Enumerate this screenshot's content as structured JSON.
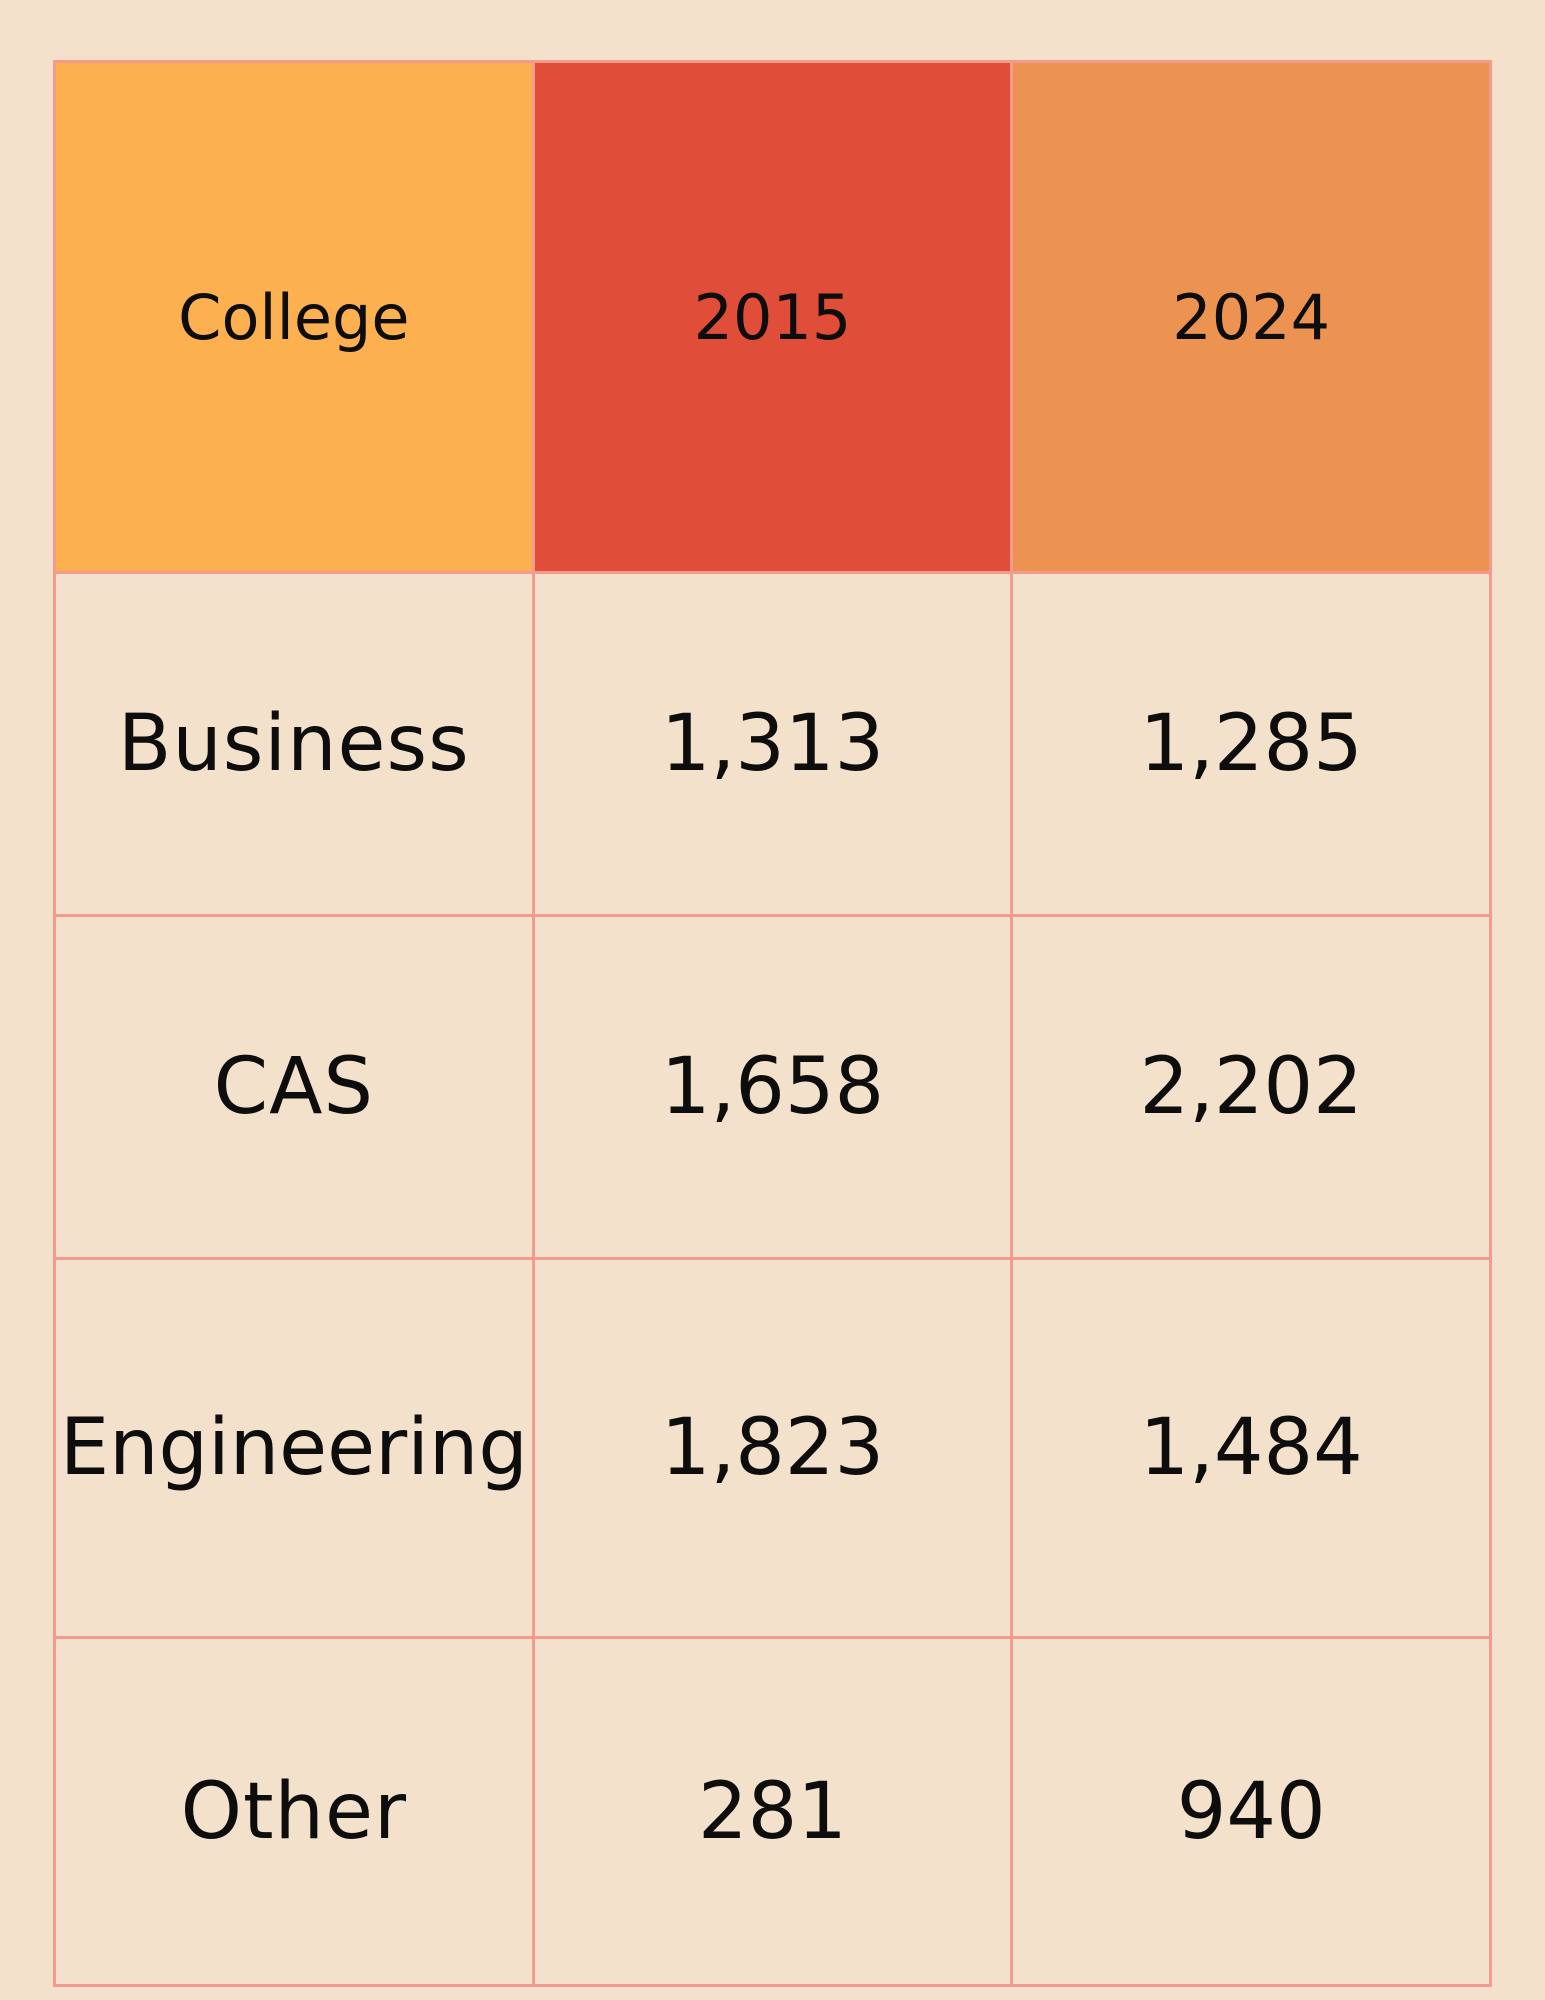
{
  "colors": {
    "page_background": "#f3e1cc",
    "cell_border": "#f59a8f",
    "header_college": "#fcb04f",
    "header_2015": "#e04e3a",
    "header_2024": "#ec9352",
    "text": "#0d0d0d"
  },
  "chart_data": {
    "type": "table",
    "columns": [
      "College",
      "2015",
      "2024"
    ],
    "rows": [
      [
        "Business",
        "1,313",
        "1,285"
      ],
      [
        "CAS",
        "1,658",
        "2,202"
      ],
      [
        "Engineering",
        "1,823",
        "1,484"
      ],
      [
        "Other",
        "281",
        "940"
      ]
    ]
  }
}
